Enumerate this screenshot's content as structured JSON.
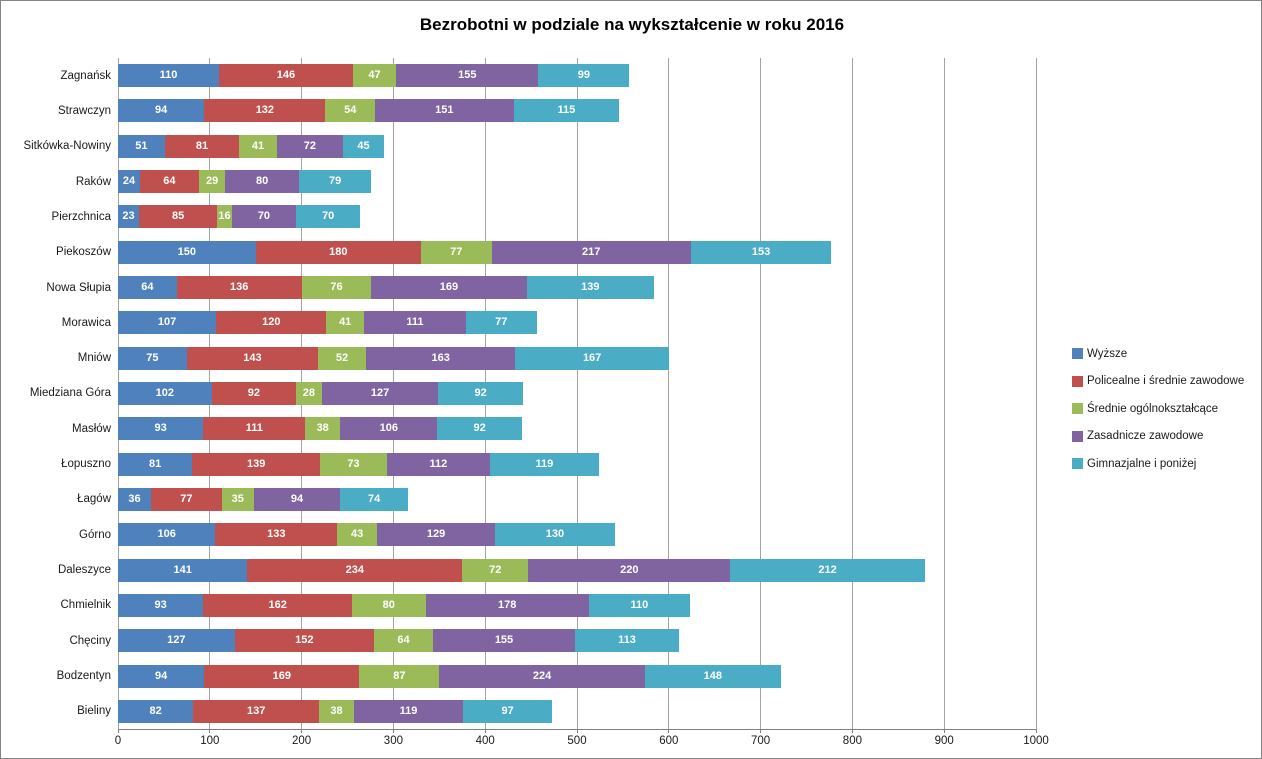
{
  "chart_data": {
    "type": "bar",
    "orientation": "horizontal",
    "stacked": true,
    "title": "Bezrobotni w podziale na wykształcenie w roku 2016",
    "categories_top_to_bottom": [
      "Zagnańsk",
      "Strawczyn",
      "Sitkówka-Nowiny",
      "Raków",
      "Pierzchnica",
      "Piekoszów",
      "Nowa Słupia",
      "Morawica",
      "Mniów",
      "Miedziana Góra",
      "Masłów",
      "Łopuszno",
      "Łagów",
      "Górno",
      "Daleszyce",
      "Chmielnik",
      "Chęciny",
      "Bodzentyn",
      "Bieliny"
    ],
    "series": [
      {
        "name": "Wyższe",
        "color": "#4F81BD",
        "values": [
          110,
          94,
          51,
          24,
          23,
          150,
          64,
          107,
          75,
          102,
          93,
          81,
          36,
          106,
          141,
          93,
          127,
          94,
          82
        ]
      },
      {
        "name": "Policealne i średnie zawodowe",
        "color": "#C0504D",
        "values": [
          146,
          132,
          81,
          64,
          85,
          180,
          136,
          120,
          143,
          92,
          111,
          139,
          77,
          133,
          234,
          162,
          152,
          169,
          137
        ]
      },
      {
        "name": "Średnie ogólnokształcące",
        "color": "#9BBB59",
        "values": [
          47,
          54,
          41,
          29,
          16,
          77,
          76,
          41,
          52,
          28,
          38,
          73,
          35,
          43,
          72,
          80,
          64,
          87,
          38
        ]
      },
      {
        "name": "Zasadnicze zawodowe",
        "color": "#8064A2",
        "values": [
          155,
          151,
          72,
          80,
          70,
          217,
          169,
          111,
          163,
          127,
          106,
          112,
          94,
          129,
          220,
          178,
          155,
          224,
          119
        ]
      },
      {
        "name": "Gimnazjalne i poniżej",
        "color": "#4BACC6",
        "values": [
          99,
          115,
          45,
          79,
          70,
          153,
          139,
          77,
          167,
          92,
          92,
          119,
          74,
          130,
          212,
          110,
          113,
          148,
          97
        ]
      }
    ],
    "x_axis": {
      "min": 0,
      "max": 1000,
      "tick_interval": 100,
      "tick_labels": [
        "0",
        "100",
        "200",
        "300",
        "400",
        "500",
        "600",
        "700",
        "800",
        "900",
        "1000"
      ]
    },
    "legend_position": "right",
    "grid": true,
    "style_colors": {
      "gridline": "#A3A3A3",
      "axis_line": "#808080",
      "outer_border": "#848484",
      "data_label_text": "#FFFFFF",
      "axis_text": "#1A1A1A",
      "title_text": "#000000"
    }
  }
}
